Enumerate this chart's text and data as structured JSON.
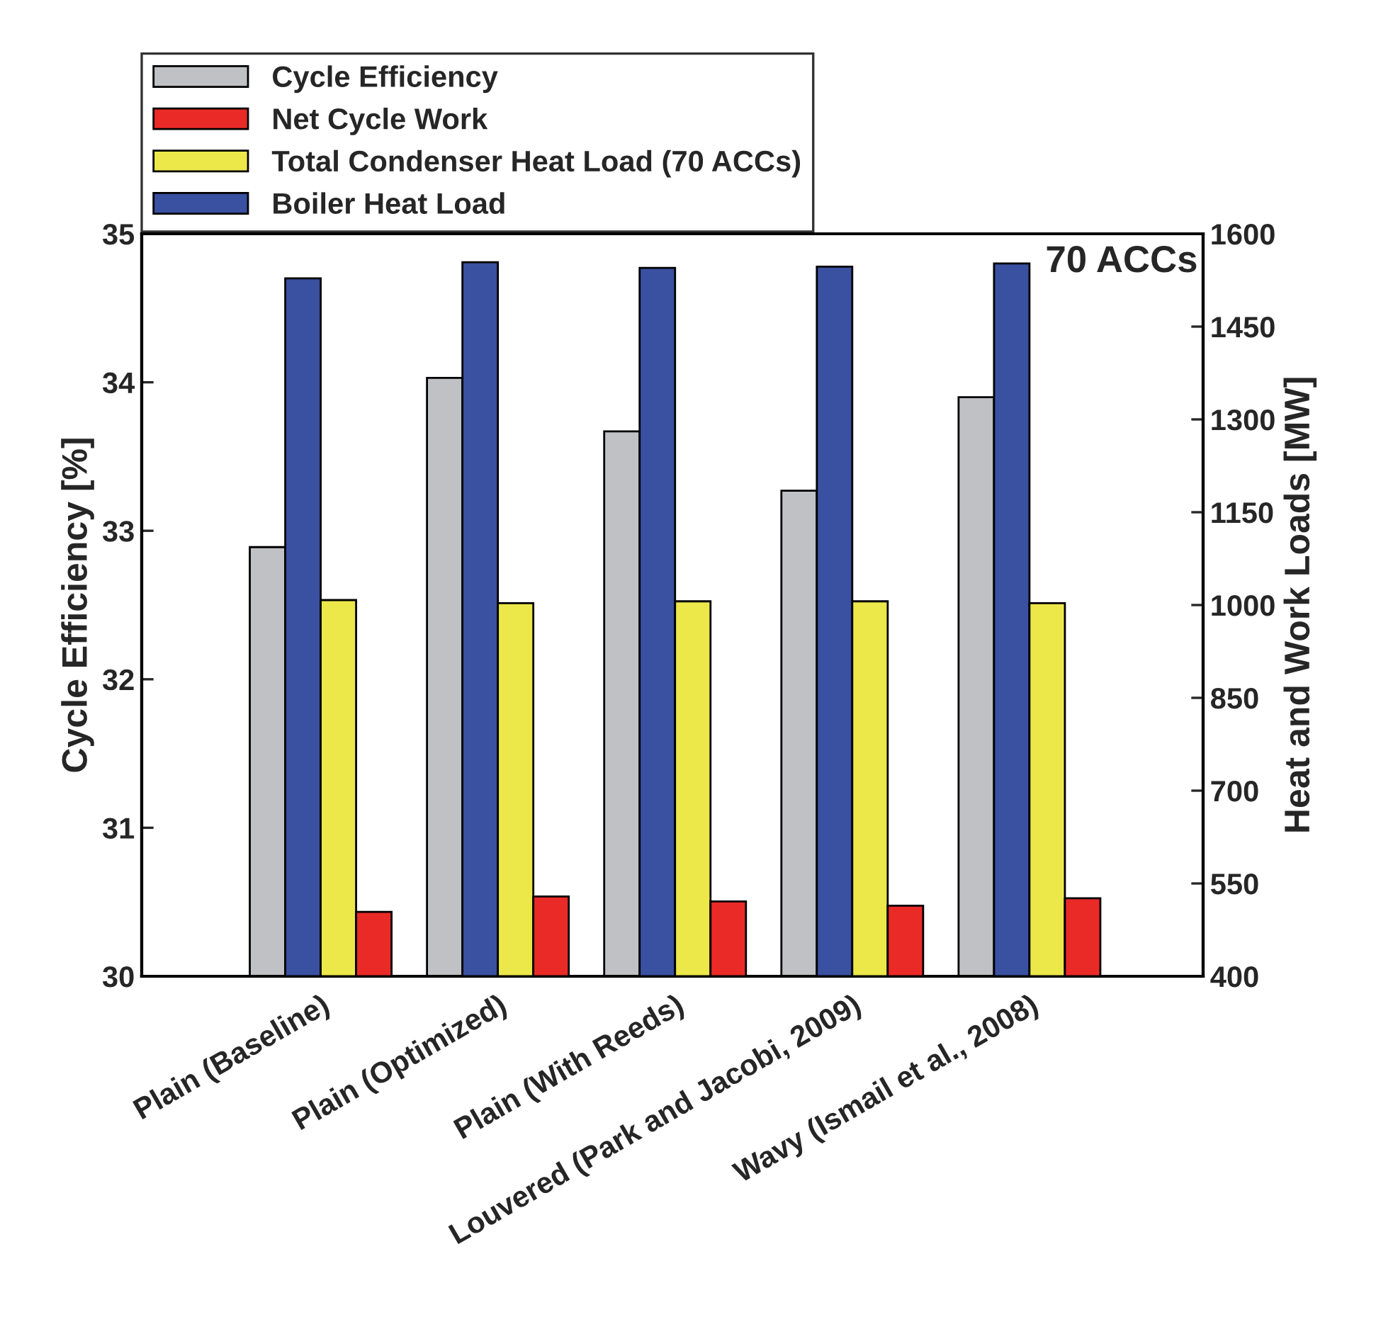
{
  "chart_data": {
    "type": "bar",
    "categories": [
      "Plain (Baseline)",
      "Plain (Optimized)",
      "Plain (With Reeds)",
      "Louvered (Park and Jacobi, 2009)",
      "Wavy (Ismail et al., 2008)"
    ],
    "series": [
      {
        "name": "Cycle Efficiency",
        "color": "#c0c1c4",
        "values": [
          32.89,
          34.03,
          33.67,
          33.27,
          33.9
        ]
      },
      {
        "name": "Net Cycle Work",
        "color": "#ea2a27",
        "axis": "y2",
        "values": [
          504,
          529,
          521,
          514,
          526
        ]
      },
      {
        "name": "Total Condenser Heat Load (70 ACCs)",
        "color": "#ede84a",
        "axis": "y2",
        "values": [
          1008,
          1003,
          1006,
          1006,
          1003
        ]
      },
      {
        "name": "Boiler Heat Load",
        "color": "#3a50a0",
        "axis": "y2",
        "values": [
          1528,
          1554,
          1545,
          1547,
          1552
        ]
      }
    ],
    "ylabel": "Cycle Efficiency [%]",
    "y2label": "Heat and Work Loads [MW]",
    "ylim": [
      30,
      35
    ],
    "yticks": [
      30,
      31,
      32,
      33,
      34,
      35
    ],
    "y2lim": [
      400,
      1600
    ],
    "y2ticks": [
      400,
      550,
      700,
      850,
      1000,
      1150,
      1300,
      1450,
      1600
    ],
    "annotations": [
      "70 ACCs"
    ],
    "legend": "top left",
    "grid": false
  }
}
